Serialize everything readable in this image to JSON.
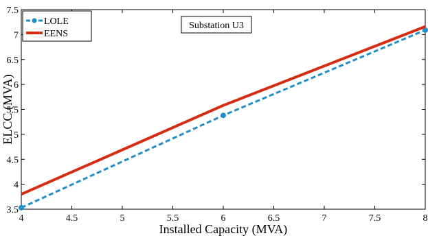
{
  "chart_data": {
    "type": "line",
    "xlabel": "Installed Capacity (MVA)",
    "ylabel": "ELCC (MVA)",
    "xlim": [
      4,
      8
    ],
    "ylim": [
      3.5,
      7.5
    ],
    "xticks": [
      4,
      4.5,
      5,
      5.5,
      6,
      6.5,
      7,
      7.5,
      8
    ],
    "yticks": [
      3.5,
      4,
      4.5,
      5,
      5.5,
      6,
      6.5,
      7,
      7.5
    ],
    "x_tick_labels": [
      "4",
      "4.5",
      "5",
      "5.5",
      "6",
      "6.5",
      "7",
      "7.5",
      "8"
    ],
    "y_tick_labels": [
      "3.5",
      "4",
      "4.5",
      "5",
      "5.5",
      "6",
      "6.5",
      "7",
      "7.5"
    ],
    "grid": false,
    "legend_position": "top-left",
    "annotation": "Substation U3",
    "series": [
      {
        "name": "LOLE",
        "color": "#1f8fc7",
        "style": "dashed",
        "marker": "circle",
        "x": [
          4,
          6,
          8
        ],
        "y": [
          3.53,
          5.38,
          7.09
        ]
      },
      {
        "name": "EENS",
        "color": "#d62d12",
        "style": "solid",
        "marker": "none",
        "x": [
          4,
          6,
          8
        ],
        "y": [
          3.8,
          5.58,
          7.16
        ]
      }
    ]
  }
}
